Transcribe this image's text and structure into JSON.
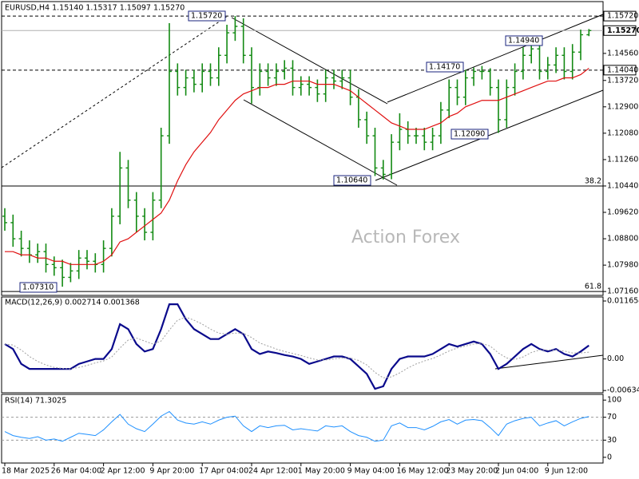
{
  "chart_data": [
    {
      "type": "ohlc",
      "title": "EURUSD,H4  1.15140 1.15317 1.15097 1.15270",
      "categories": [
        "18 Mar 2025",
        null,
        null,
        null,
        null,
        null,
        "26 Mar 04:00",
        null,
        null,
        null,
        null,
        null,
        "2 Apr 12:00",
        null,
        null,
        null,
        null,
        null,
        "9 Apr 20:00",
        null,
        null,
        null,
        null,
        null,
        "17 Apr 04:00",
        null,
        null,
        null,
        null,
        null,
        "24 Apr 12:00",
        null,
        null,
        null,
        null,
        null,
        "1 May 20:00",
        null,
        null,
        null,
        null,
        null,
        "9 May 04:00",
        null,
        null,
        null,
        null,
        null,
        "16 May 12:00",
        null,
        null,
        null,
        null,
        null,
        "23 May 20:00",
        null,
        null,
        null,
        null,
        null,
        "2 Jun 04:00",
        null,
        null,
        null,
        null,
        null,
        "9 Jun 12:00",
        null,
        null,
        null,
        null,
        null
      ],
      "open": [
        1.095,
        1.093,
        1.088,
        1.085,
        1.083,
        1.084,
        1.08,
        1.079,
        1.076,
        1.078,
        1.082,
        1.081,
        1.08,
        1.085,
        1.095,
        1.11,
        1.1,
        1.095,
        1.09,
        1.1,
        1.12,
        1.14,
        1.135,
        1.138,
        1.136,
        1.14,
        1.138,
        1.145,
        1.152,
        1.154,
        1.145,
        1.135,
        1.14,
        1.138,
        1.14,
        1.141,
        1.135,
        1.136,
        1.135,
        1.133,
        1.138,
        1.137,
        1.138,
        1.132,
        1.125,
        1.12,
        1.11,
        1.108,
        1.118,
        1.122,
        1.12,
        1.12,
        1.118,
        1.12,
        1.128,
        1.135,
        1.132,
        1.138,
        1.14,
        1.14,
        1.135,
        1.125,
        1.135,
        1.14,
        1.145,
        1.147,
        1.14,
        1.142,
        1.145,
        1.14,
        1.146,
        1.1514
      ],
      "high": [
        1.0975,
        1.0955,
        1.0905,
        1.0875,
        1.0865,
        1.0865,
        1.0825,
        1.0815,
        1.0805,
        1.0845,
        1.0845,
        1.0835,
        1.0875,
        1.0975,
        1.115,
        1.1125,
        1.1025,
        1.0975,
        1.1025,
        1.1225,
        1.155,
        1.1425,
        1.1405,
        1.1405,
        1.1425,
        1.1425,
        1.1475,
        1.1545,
        1.1572,
        1.1565,
        1.1475,
        1.1425,
        1.1425,
        1.1425,
        1.1435,
        1.1435,
        1.1385,
        1.1385,
        1.1375,
        1.1405,
        1.1405,
        1.1405,
        1.1405,
        1.1345,
        1.1275,
        1.1225,
        1.1125,
        1.1205,
        1.127,
        1.1245,
        1.1225,
        1.1225,
        1.1225,
        1.1305,
        1.1375,
        1.1375,
        1.1405,
        1.1412,
        1.1417,
        1.141,
        1.1375,
        1.1375,
        1.1425,
        1.1475,
        1.1494,
        1.148,
        1.1445,
        1.1475,
        1.1475,
        1.1485,
        1.153,
        1.15317
      ],
      "low": [
        1.0905,
        1.0855,
        1.0825,
        1.0805,
        1.0805,
        1.0775,
        1.0765,
        1.0731,
        1.0745,
        1.0755,
        1.0785,
        1.0775,
        1.0775,
        1.0825,
        1.0925,
        1.0975,
        1.09,
        1.0875,
        1.0875,
        1.0975,
        1.1175,
        1.1325,
        1.1325,
        1.1335,
        1.1335,
        1.1355,
        1.1355,
        1.1425,
        1.1495,
        1.1425,
        1.13,
        1.1325,
        1.1355,
        1.1355,
        1.1375,
        1.1325,
        1.1325,
        1.1325,
        1.1305,
        1.1305,
        1.1345,
        1.1345,
        1.1295,
        1.1225,
        1.1175,
        1.1075,
        1.1064,
        1.1065,
        1.1155,
        1.1175,
        1.1175,
        1.1155,
        1.1155,
        1.1175,
        1.1255,
        1.1295,
        1.1295,
        1.1355,
        1.1375,
        1.1325,
        1.1209,
        1.1225,
        1.1325,
        1.1375,
        1.1425,
        1.1375,
        1.1375,
        1.1395,
        1.1375,
        1.1375,
        1.1435,
        1.15097
      ],
      "close": [
        1.093,
        1.088,
        1.085,
        1.083,
        1.084,
        1.08,
        1.079,
        1.076,
        1.078,
        1.082,
        1.081,
        1.08,
        1.085,
        1.095,
        1.11,
        1.1,
        1.095,
        1.09,
        1.1,
        1.12,
        1.14,
        1.135,
        1.138,
        1.136,
        1.14,
        1.138,
        1.145,
        1.152,
        1.154,
        1.145,
        1.135,
        1.14,
        1.138,
        1.14,
        1.141,
        1.135,
        1.136,
        1.135,
        1.133,
        1.138,
        1.137,
        1.138,
        1.132,
        1.125,
        1.12,
        1.11,
        1.108,
        1.118,
        1.122,
        1.12,
        1.12,
        1.118,
        1.12,
        1.128,
        1.135,
        1.132,
        1.138,
        1.14,
        1.14,
        1.135,
        1.125,
        1.135,
        1.14,
        1.145,
        1.147,
        1.14,
        1.142,
        1.145,
        1.14,
        1.146,
        1.1514,
        1.1527
      ],
      "color": "#138a13",
      "ma": {
        "color": "#e01010",
        "values": [
          1.084,
          1.084,
          1.083,
          1.083,
          1.082,
          1.082,
          1.081,
          1.081,
          1.08,
          1.08,
          1.08,
          1.08,
          1.081,
          1.083,
          1.087,
          1.088,
          1.09,
          1.092,
          1.094,
          1.096,
          1.1,
          1.106,
          1.111,
          1.115,
          1.118,
          1.121,
          1.125,
          1.128,
          1.131,
          1.133,
          1.134,
          1.135,
          1.135,
          1.136,
          1.136,
          1.137,
          1.137,
          1.137,
          1.136,
          1.136,
          1.136,
          1.135,
          1.134,
          1.132,
          1.13,
          1.128,
          1.126,
          1.124,
          1.123,
          1.122,
          1.122,
          1.122,
          1.123,
          1.124,
          1.126,
          1.127,
          1.129,
          1.13,
          1.131,
          1.131,
          1.131,
          1.132,
          1.133,
          1.134,
          1.135,
          1.136,
          1.137,
          1.137,
          1.138,
          1.138,
          1.139,
          1.141
        ]
      },
      "ylim": [
        1.0704,
        1.1617
      ],
      "yticks": [
        {
          "value": 1.1456,
          "label": "1.14560"
        },
        {
          "value": 1.1372,
          "label": "1.13720"
        },
        {
          "value": 1.129,
          "label": "1.12900"
        },
        {
          "value": 1.1208,
          "label": "1.12080"
        },
        {
          "value": 1.1126,
          "label": "1.11260"
        },
        {
          "value": 1.1044,
          "label": "1.10440"
        },
        {
          "value": 1.0962,
          "label": "1.09620"
        },
        {
          "value": 1.088,
          "label": "1.08800"
        },
        {
          "value": 1.0798,
          "label": "1.07980"
        },
        {
          "value": 1.0716,
          "label": "1.07160"
        }
      ],
      "levels": [
        {
          "value": 1.1572,
          "label": "1.15720",
          "style": "dashed"
        },
        {
          "value": 1.1527,
          "label": "1.15270",
          "style": "current"
        },
        {
          "value": 1.1404,
          "label": "1.14040",
          "style": "dashed"
        }
      ],
      "fib_levels": [
        {
          "value": 1.1044,
          "label": "38.2"
        },
        {
          "value": 1.0716,
          "label": "61.8"
        }
      ],
      "annotations": [
        "1.15720",
        "1.14940",
        "1.14170",
        "1.12090",
        "1.10640",
        "1.07310"
      ],
      "watermark": "Action Forex"
    },
    {
      "type": "line",
      "title": "MACD(12,26,9) 0.002714 0.001368",
      "series": [
        {
          "color": "#0a0a8c",
          "style": "solid",
          "values": [
            0.003,
            0.002,
            -0.001,
            -0.002,
            -0.002,
            -0.002,
            -0.002,
            -0.002,
            -0.002,
            -0.001,
            -0.0005,
            0,
            0,
            0.002,
            0.007,
            0.006,
            0.003,
            0.0015,
            0.002,
            0.006,
            0.011,
            0.011,
            0.008,
            0.006,
            0.005,
            0.004,
            0.004,
            0.005,
            0.006,
            0.005,
            0.002,
            0.001,
            0.0015,
            0.0012,
            0.0008,
            0.0005,
            0,
            -0.001,
            -0.0005,
            0,
            0.0005,
            0.0005,
            0,
            -0.0015,
            -0.003,
            -0.006,
            -0.0055,
            -0.002,
            0,
            0.0005,
            0.0005,
            0.0005,
            0.001,
            0.002,
            0.003,
            0.0025,
            0.003,
            0.0035,
            0.003,
            0.001,
            -0.002,
            -0.001,
            0.0005,
            0.002,
            0.003,
            0.002,
            0.0015,
            0.002,
            0.001,
            0.0005,
            0.0015,
            0.002714
          ]
        },
        {
          "color": "#a0a0a0",
          "style": "dotted",
          "values": [
            0.003,
            0.0028,
            0.0018,
            0.0005,
            -0.0005,
            -0.0012,
            -0.0017,
            -0.0019,
            -0.002,
            -0.0017,
            -0.0013,
            -0.0008,
            -0.0004,
            0.0004,
            0.0022,
            0.0038,
            0.0042,
            0.0036,
            0.003,
            0.0036,
            0.0058,
            0.0078,
            0.0084,
            0.0078,
            0.007,
            0.006,
            0.0052,
            0.005,
            0.0052,
            0.0052,
            0.0043,
            0.0032,
            0.0026,
            0.002,
            0.0015,
            0.0011,
            0.0007,
            0.0002,
            -0.0002,
            -0.0002,
            0,
            0.0002,
            0.0002,
            -0.0003,
            -0.0012,
            -0.0027,
            -0.0038,
            -0.0036,
            -0.0028,
            -0.0018,
            -0.001,
            -0.0004,
            0.0001,
            0.0008,
            0.0016,
            0.0022,
            0.0026,
            0.003,
            0.0031,
            0.0026,
            0.0012,
            0.0002,
            -0.0001,
            0.0004,
            0.0013,
            0.0018,
            0.0018,
            0.0018,
            0.0016,
            0.0012,
            0.0012,
            0.001368
          ]
        }
      ],
      "ylim": [
        -0.0068,
        0.01246
      ],
      "yticks": [
        0.011654,
        {
          "value": 0,
          "label": "0.00"
        },
        -0.006345
      ]
    },
    {
      "type": "line",
      "title": "RSI(14) 71.3025",
      "series": [
        {
          "color": "#1e90ff",
          "style": "solid",
          "values": [
            45,
            38,
            35,
            33,
            36,
            30,
            32,
            28,
            35,
            42,
            40,
            38,
            48,
            62,
            75,
            58,
            50,
            45,
            58,
            72,
            80,
            65,
            60,
            58,
            62,
            58,
            65,
            70,
            72,
            55,
            45,
            55,
            52,
            55,
            56,
            48,
            50,
            48,
            46,
            55,
            53,
            55,
            45,
            38,
            35,
            28,
            30,
            55,
            60,
            52,
            52,
            48,
            54,
            62,
            66,
            58,
            65,
            66,
            64,
            52,
            38,
            58,
            64,
            68,
            70,
            55,
            60,
            64,
            55,
            62,
            68,
            71.3025
          ]
        }
      ],
      "ylim": [
        -10,
        110
      ],
      "yticks": [
        100,
        70,
        30,
        0
      ],
      "levels": [
        70,
        30
      ]
    }
  ]
}
